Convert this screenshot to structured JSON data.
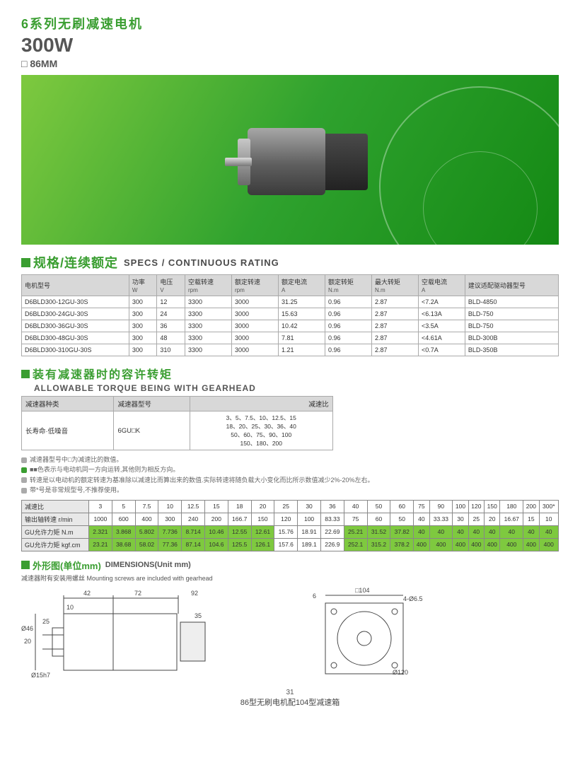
{
  "header": {
    "series": "6系列无刷减速电机",
    "watt": "300W",
    "size": "□ 86MM"
  },
  "spec_section": {
    "title_cn": "规格/连续额定",
    "title_en": "SPECS / CONTINUOUS RATING",
    "columns": [
      {
        "cn": "电机型号",
        "sub": ""
      },
      {
        "cn": "功率",
        "sub": "W"
      },
      {
        "cn": "电压",
        "sub": "V"
      },
      {
        "cn": "空载转速",
        "sub": "rpm"
      },
      {
        "cn": "额定转速",
        "sub": "rpm"
      },
      {
        "cn": "额定电流",
        "sub": "A"
      },
      {
        "cn": "额定转矩",
        "sub": "N.m"
      },
      {
        "cn": "最大转矩",
        "sub": "N.m"
      },
      {
        "cn": "空载电流",
        "sub": "A"
      },
      {
        "cn": "建议适配驱动器型号",
        "sub": ""
      }
    ],
    "rows": [
      [
        "D6BLD300-12GU-30S",
        "300",
        "12",
        "3300",
        "3000",
        "31.25",
        "0.96",
        "2.87",
        "<7.2A",
        "BLD-4850"
      ],
      [
        "D6BLD300-24GU-30S",
        "300",
        "24",
        "3300",
        "3000",
        "15.63",
        "0.96",
        "2.87",
        "<6.13A",
        "BLD-750"
      ],
      [
        "D6BLD300-36GU-30S",
        "300",
        "36",
        "3300",
        "3000",
        "10.42",
        "0.96",
        "2.87",
        "<3.5A",
        "BLD-750"
      ],
      [
        "D6BLD300-48GU-30S",
        "300",
        "48",
        "3300",
        "3000",
        "7.81",
        "0.96",
        "2.87",
        "<4.61A",
        "BLD-300B"
      ],
      [
        "D6BLD300-310GU-30S",
        "300",
        "310",
        "3300",
        "3000",
        "1.21",
        "0.96",
        "2.87",
        "<0.7A",
        "BLD-350B"
      ]
    ]
  },
  "torque_section": {
    "title_cn": "装有减速器时的容许转矩",
    "title_en": "ALLOWABLE TORQUE BEING WITH GEARHEAD",
    "cols": [
      "减速器种类",
      "减速器型号",
      "减速比"
    ],
    "row": [
      "长寿命·低噪音",
      "6GU□K",
      "3、5、7.5、10、12.5、15\n18、20、25、30、36、40\n50、60、75、90、100\n150、180、200"
    ]
  },
  "notes": [
    "减速器型号中□为减速比的数值。",
    "■■色表示与电动机同一方向运转,其他则为相反方向。",
    "转速是以电动机的额定转速为基准除以减速比而算出来的数值.实际转速将随负载大小变化而比所示数值减少2%-20%左右。",
    "带*号是非常规型号,不推荐使用。"
  ],
  "ratio_table": {
    "ratios": [
      "3",
      "5",
      "7.5",
      "10",
      "12.5",
      "15",
      "18",
      "20",
      "25",
      "30",
      "36",
      "40",
      "50",
      "60",
      "75",
      "90",
      "100",
      "120",
      "150",
      "180",
      "200",
      "300*"
    ],
    "rpm": [
      "1000",
      "600",
      "400",
      "300",
      "240",
      "200",
      "166.7",
      "150",
      "120",
      "100",
      "83.33",
      "75",
      "60",
      "50",
      "40",
      "33.33",
      "30",
      "25",
      "20",
      "16.67",
      "15",
      "10"
    ],
    "nm": [
      "2.321",
      "3.868",
      "5.802",
      "7.736",
      "8.714",
      "10.46",
      "12.55",
      "12.61",
      "15.76",
      "18.91",
      "22.69",
      "25.21",
      "31.52",
      "37.82",
      "40",
      "40",
      "40",
      "40",
      "40",
      "40",
      "40",
      "40"
    ],
    "kgfcm": [
      "23.21",
      "38.68",
      "58.02",
      "77.36",
      "87.14",
      "104.6",
      "125.5",
      "126.1",
      "157.6",
      "189.1",
      "226.9",
      "252.1",
      "315.2",
      "378.2",
      "400",
      "400",
      "400",
      "400",
      "400",
      "400",
      "400",
      "400"
    ],
    "green_nm": [
      1,
      1,
      1,
      1,
      1,
      1,
      1,
      1,
      0,
      0,
      0,
      1,
      1,
      1,
      1,
      1,
      1,
      1,
      1,
      1,
      1,
      1
    ],
    "green_kgf": [
      1,
      1,
      1,
      1,
      1,
      1,
      1,
      1,
      0,
      0,
      0,
      1,
      1,
      1,
      1,
      1,
      1,
      1,
      1,
      1,
      1,
      1
    ],
    "row_labels": [
      "减速比",
      "输出轴转速 r/min",
      "GU允许力矩 N.m",
      "GU允许力矩 kgf.cm"
    ]
  },
  "dimensions": {
    "title_cn": "外形图(单位mm)",
    "title_en": "DIMENSIONS(Unit mm)",
    "note": "减速器附有安装用螺丝  Mounting screws are included with gearhead",
    "labels": {
      "l42": "42",
      "l72": "72",
      "l92": "92",
      "l10": "10",
      "l35": "35",
      "l25": "25",
      "l20": "20",
      "d46": "Ø46",
      "sh": "Ø15h7",
      "l6": "6",
      "sq104": "□104",
      "holes": "4-Ø6.5",
      "d120": "Ø120"
    }
  },
  "footer": {
    "text": "86型无刷电机配104型减速箱",
    "page": "31"
  },
  "colors": {
    "accent": "#3a9e31",
    "green_cell": "#7ec93f",
    "header_bg": "#d8d8d8"
  }
}
